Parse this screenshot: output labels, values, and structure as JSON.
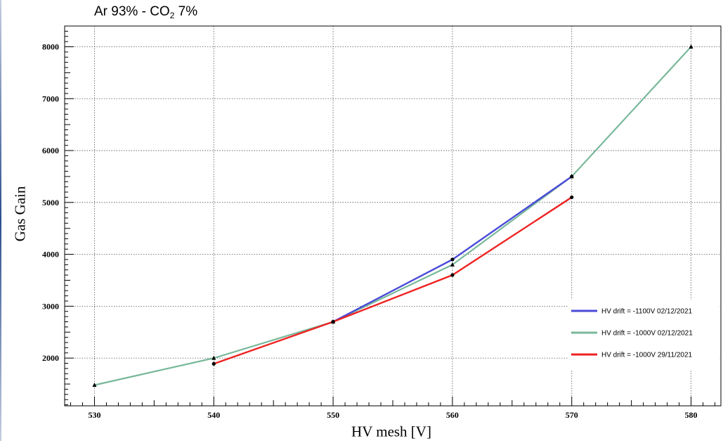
{
  "title_main": "Ar 93% - CO",
  "title_sub": "2",
  "title_tail": " 7%",
  "chart_data": {
    "type": "line",
    "title": "Ar 93% - CO2 7%",
    "xlabel": "HV mesh [V]",
    "ylabel": "Gas Gain",
    "xlim": [
      527.5,
      582.5
    ],
    "ylim": [
      1080,
      8400
    ],
    "xticks": [
      530,
      540,
      550,
      560,
      570,
      580
    ],
    "yticks": [
      2000,
      3000,
      4000,
      5000,
      6000,
      7000,
      8000
    ],
    "grid": true,
    "legend_position": "bottom-right",
    "series": [
      {
        "name": "HV drift = -1100V 02/12/2021",
        "color": "#4a4ad8",
        "marker": "circle",
        "x": [
          550,
          560,
          570
        ],
        "y": [
          2700,
          3900,
          5500
        ]
      },
      {
        "name": "HV drift = -1000V 02/12/2021",
        "color": "#78b89a",
        "marker": "triangle",
        "x": [
          530,
          540,
          550,
          560,
          570,
          580
        ],
        "y": [
          1480,
          2000,
          2700,
          3800,
          5500,
          8000
        ]
      },
      {
        "name": "HV drift = -1000V 29/11/2021",
        "color": "#ee2222",
        "marker": "circle",
        "x": [
          540,
          550,
          560,
          570
        ],
        "y": [
          1890,
          2700,
          3600,
          5100
        ]
      }
    ]
  }
}
